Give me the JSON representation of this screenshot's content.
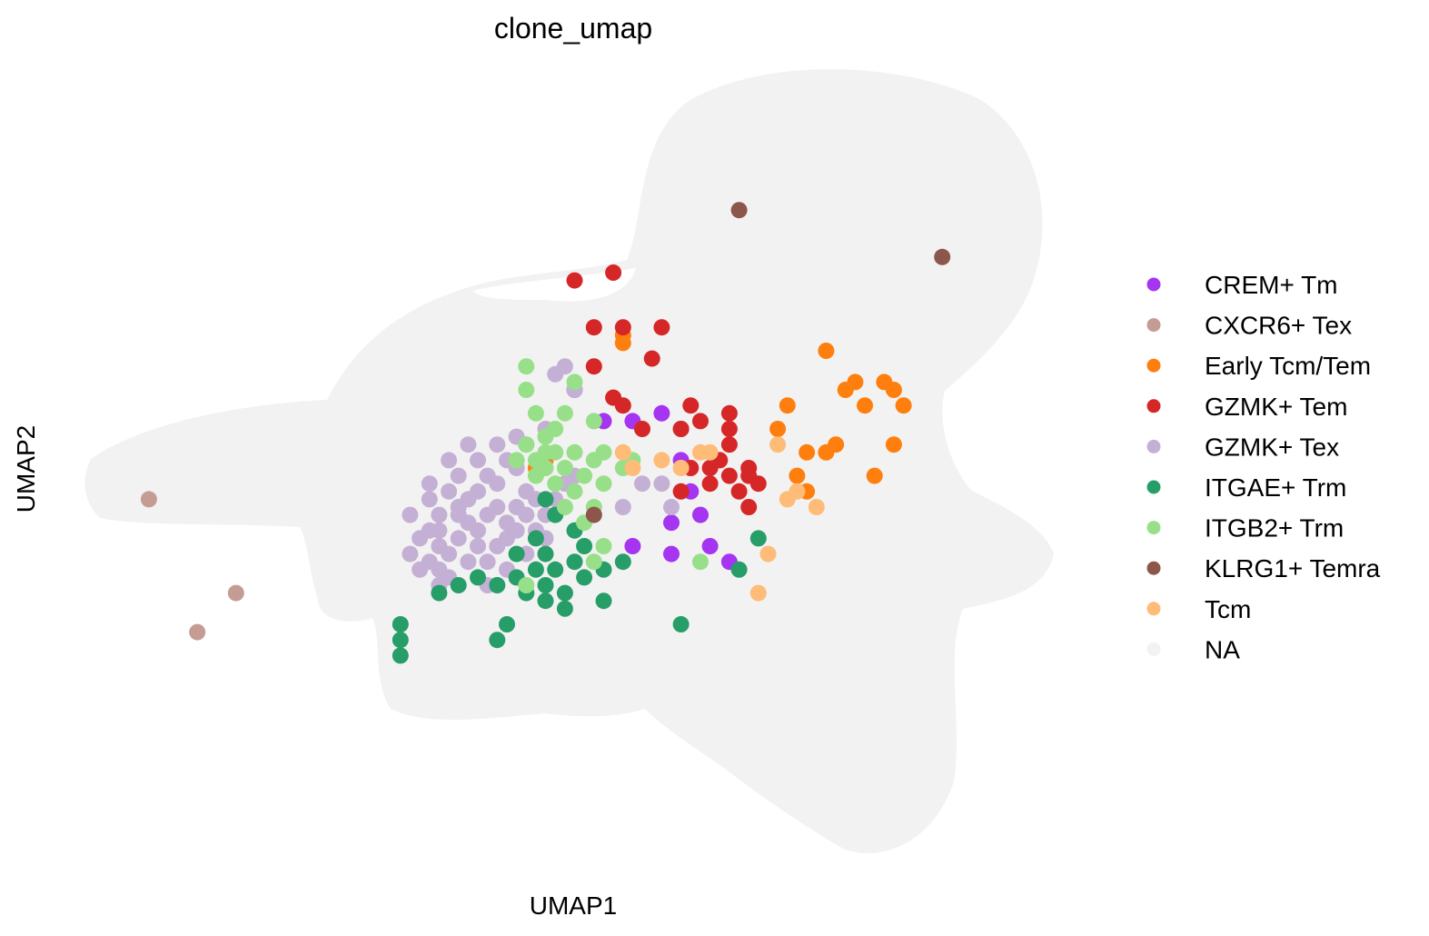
{
  "chart_data": {
    "type": "scatter",
    "title": "clone_umap",
    "xlabel": "UMAP1",
    "ylabel": "UMAP2",
    "xlim": [
      0,
      1
    ],
    "ylim": [
      0,
      1
    ],
    "grid": false,
    "legend": "right",
    "categories": [
      {
        "name": "CREM+ Tm",
        "color": "#a535f0"
      },
      {
        "name": "CXCR6+ Tex",
        "color": "#c49c94"
      },
      {
        "name": "Early Tcm/Tem",
        "color": "#ff7f0e"
      },
      {
        "name": "GZMK+ Tem",
        "color": "#d62728"
      },
      {
        "name": "GZMK+ Tex",
        "color": "#c5b0d5"
      },
      {
        "name": "ITGAE+ Trm",
        "color": "#279e68"
      },
      {
        "name": "ITGB2+ Trm",
        "color": "#98df8a"
      },
      {
        "name": "KLRG1+ Temra",
        "color": "#8c564b"
      },
      {
        "name": "Tcm",
        "color": "#ffbb78"
      },
      {
        "name": "NA",
        "color": "#f2f2f2"
      }
    ],
    "background_color": "#f2f2f2",
    "series": [
      {
        "name": "CREM+ Tm",
        "points": [
          [
            0.5,
            0.6
          ],
          [
            0.53,
            0.56
          ],
          [
            0.56,
            0.56
          ],
          [
            0.59,
            0.57
          ],
          [
            0.61,
            0.55
          ],
          [
            0.61,
            0.51
          ],
          [
            0.62,
            0.47
          ],
          [
            0.63,
            0.44
          ],
          [
            0.6,
            0.43
          ],
          [
            0.6,
            0.39
          ],
          [
            0.64,
            0.4
          ],
          [
            0.66,
            0.38
          ],
          [
            0.56,
            0.4
          ]
        ]
      },
      {
        "name": "CXCR6+ Tex",
        "points": [
          [
            0.06,
            0.46
          ],
          [
            0.15,
            0.34
          ],
          [
            0.11,
            0.29
          ]
        ]
      },
      {
        "name": "Early Tcm/Tem",
        "points": [
          [
            0.55,
            0.67
          ],
          [
            0.55,
            0.66
          ],
          [
            0.76,
            0.65
          ],
          [
            0.78,
            0.6
          ],
          [
            0.79,
            0.61
          ],
          [
            0.8,
            0.58
          ],
          [
            0.82,
            0.61
          ],
          [
            0.83,
            0.6
          ],
          [
            0.84,
            0.58
          ],
          [
            0.83,
            0.53
          ],
          [
            0.81,
            0.49
          ],
          [
            0.71,
            0.55
          ],
          [
            0.72,
            0.58
          ],
          [
            0.73,
            0.49
          ],
          [
            0.74,
            0.47
          ],
          [
            0.76,
            0.52
          ],
          [
            0.77,
            0.53
          ],
          [
            0.74,
            0.52
          ],
          [
            0.46,
            0.5
          ],
          [
            0.47,
            0.51
          ]
        ]
      },
      {
        "name": "GZMK+ Tem",
        "points": [
          [
            0.5,
            0.74
          ],
          [
            0.54,
            0.75
          ],
          [
            0.52,
            0.68
          ],
          [
            0.55,
            0.68
          ],
          [
            0.59,
            0.68
          ],
          [
            0.58,
            0.64
          ],
          [
            0.52,
            0.63
          ],
          [
            0.54,
            0.59
          ],
          [
            0.55,
            0.58
          ],
          [
            0.57,
            0.55
          ],
          [
            0.61,
            0.55
          ],
          [
            0.63,
            0.56
          ],
          [
            0.66,
            0.55
          ],
          [
            0.66,
            0.57
          ],
          [
            0.66,
            0.53
          ],
          [
            0.64,
            0.5
          ],
          [
            0.66,
            0.49
          ],
          [
            0.68,
            0.49
          ],
          [
            0.67,
            0.47
          ],
          [
            0.68,
            0.45
          ],
          [
            0.69,
            0.48
          ],
          [
            0.68,
            0.5
          ],
          [
            0.62,
            0.5
          ],
          [
            0.64,
            0.48
          ],
          [
            0.61,
            0.47
          ],
          [
            0.62,
            0.58
          ],
          [
            0.65,
            0.51
          ]
        ]
      },
      {
        "name": "GZMK+ Tex",
        "points": [
          [
            0.5,
            0.6
          ],
          [
            0.48,
            0.62
          ],
          [
            0.49,
            0.63
          ],
          [
            0.47,
            0.55
          ],
          [
            0.45,
            0.53
          ],
          [
            0.44,
            0.54
          ],
          [
            0.43,
            0.51
          ],
          [
            0.41,
            0.49
          ],
          [
            0.42,
            0.48
          ],
          [
            0.4,
            0.47
          ],
          [
            0.39,
            0.46
          ],
          [
            0.38,
            0.45
          ],
          [
            0.37,
            0.47
          ],
          [
            0.36,
            0.44
          ],
          [
            0.35,
            0.42
          ],
          [
            0.36,
            0.4
          ],
          [
            0.35,
            0.38
          ],
          [
            0.36,
            0.37
          ],
          [
            0.37,
            0.39
          ],
          [
            0.38,
            0.41
          ],
          [
            0.39,
            0.43
          ],
          [
            0.4,
            0.42
          ],
          [
            0.41,
            0.44
          ],
          [
            0.42,
            0.45
          ],
          [
            0.43,
            0.43
          ],
          [
            0.44,
            0.45
          ],
          [
            0.45,
            0.47
          ],
          [
            0.46,
            0.46
          ],
          [
            0.47,
            0.44
          ],
          [
            0.48,
            0.46
          ],
          [
            0.49,
            0.48
          ],
          [
            0.5,
            0.49
          ],
          [
            0.38,
            0.49
          ],
          [
            0.37,
            0.51
          ],
          [
            0.35,
            0.46
          ],
          [
            0.34,
            0.41
          ],
          [
            0.33,
            0.39
          ],
          [
            0.34,
            0.37
          ],
          [
            0.36,
            0.35
          ],
          [
            0.37,
            0.36
          ],
          [
            0.39,
            0.38
          ],
          [
            0.4,
            0.4
          ],
          [
            0.41,
            0.38
          ],
          [
            0.42,
            0.4
          ],
          [
            0.43,
            0.41
          ],
          [
            0.44,
            0.42
          ],
          [
            0.45,
            0.44
          ],
          [
            0.46,
            0.42
          ],
          [
            0.4,
            0.51
          ],
          [
            0.39,
            0.53
          ],
          [
            0.42,
            0.53
          ],
          [
            0.44,
            0.5
          ],
          [
            0.55,
            0.45
          ],
          [
            0.59,
            0.48
          ],
          [
            0.6,
            0.45
          ],
          [
            0.57,
            0.48
          ],
          [
            0.36,
            0.42
          ],
          [
            0.38,
            0.44
          ],
          [
            0.45,
            0.39
          ],
          [
            0.47,
            0.41
          ],
          [
            0.33,
            0.44
          ],
          [
            0.35,
            0.48
          ],
          [
            0.41,
            0.35
          ],
          [
            0.43,
            0.37
          ]
        ]
      },
      {
        "name": "ITGAE+ Trm",
        "points": [
          [
            0.47,
            0.46
          ],
          [
            0.48,
            0.44
          ],
          [
            0.5,
            0.42
          ],
          [
            0.51,
            0.4
          ],
          [
            0.47,
            0.39
          ],
          [
            0.46,
            0.37
          ],
          [
            0.47,
            0.35
          ],
          [
            0.48,
            0.37
          ],
          [
            0.5,
            0.38
          ],
          [
            0.51,
            0.36
          ],
          [
            0.49,
            0.34
          ],
          [
            0.47,
            0.33
          ],
          [
            0.45,
            0.34
          ],
          [
            0.44,
            0.36
          ],
          [
            0.42,
            0.35
          ],
          [
            0.4,
            0.36
          ],
          [
            0.38,
            0.35
          ],
          [
            0.36,
            0.34
          ],
          [
            0.32,
            0.3
          ],
          [
            0.32,
            0.28
          ],
          [
            0.32,
            0.26
          ],
          [
            0.42,
            0.28
          ],
          [
            0.43,
            0.3
          ],
          [
            0.49,
            0.32
          ],
          [
            0.53,
            0.33
          ],
          [
            0.61,
            0.3
          ],
          [
            0.67,
            0.37
          ],
          [
            0.69,
            0.41
          ],
          [
            0.53,
            0.37
          ],
          [
            0.55,
            0.38
          ],
          [
            0.44,
            0.39
          ],
          [
            0.46,
            0.41
          ]
        ]
      },
      {
        "name": "ITGB2+ Trm",
        "points": [
          [
            0.45,
            0.6
          ],
          [
            0.45,
            0.63
          ],
          [
            0.46,
            0.57
          ],
          [
            0.48,
            0.55
          ],
          [
            0.47,
            0.52
          ],
          [
            0.49,
            0.5
          ],
          [
            0.5,
            0.52
          ],
          [
            0.52,
            0.51
          ],
          [
            0.53,
            0.48
          ],
          [
            0.52,
            0.45
          ],
          [
            0.51,
            0.43
          ],
          [
            0.49,
            0.45
          ],
          [
            0.48,
            0.48
          ],
          [
            0.46,
            0.49
          ],
          [
            0.44,
            0.51
          ],
          [
            0.45,
            0.53
          ],
          [
            0.47,
            0.54
          ],
          [
            0.48,
            0.52
          ],
          [
            0.46,
            0.51
          ],
          [
            0.47,
            0.5
          ],
          [
            0.5,
            0.47
          ],
          [
            0.51,
            0.49
          ],
          [
            0.53,
            0.52
          ],
          [
            0.55,
            0.5
          ],
          [
            0.5,
            0.61
          ],
          [
            0.49,
            0.57
          ],
          [
            0.63,
            0.38
          ],
          [
            0.53,
            0.4
          ],
          [
            0.52,
            0.38
          ],
          [
            0.45,
            0.35
          ],
          [
            0.56,
            0.51
          ],
          [
            0.52,
            0.56
          ]
        ]
      },
      {
        "name": "KLRG1+ Temra",
        "points": [
          [
            0.67,
            0.83
          ],
          [
            0.88,
            0.77
          ],
          [
            0.52,
            0.44
          ]
        ]
      },
      {
        "name": "Tcm",
        "points": [
          [
            0.55,
            0.52
          ],
          [
            0.59,
            0.51
          ],
          [
            0.61,
            0.5
          ],
          [
            0.63,
            0.52
          ],
          [
            0.71,
            0.53
          ],
          [
            0.72,
            0.46
          ],
          [
            0.73,
            0.47
          ],
          [
            0.75,
            0.45
          ],
          [
            0.7,
            0.39
          ],
          [
            0.69,
            0.34
          ],
          [
            0.64,
            0.52
          ],
          [
            0.56,
            0.5
          ]
        ]
      }
    ]
  }
}
